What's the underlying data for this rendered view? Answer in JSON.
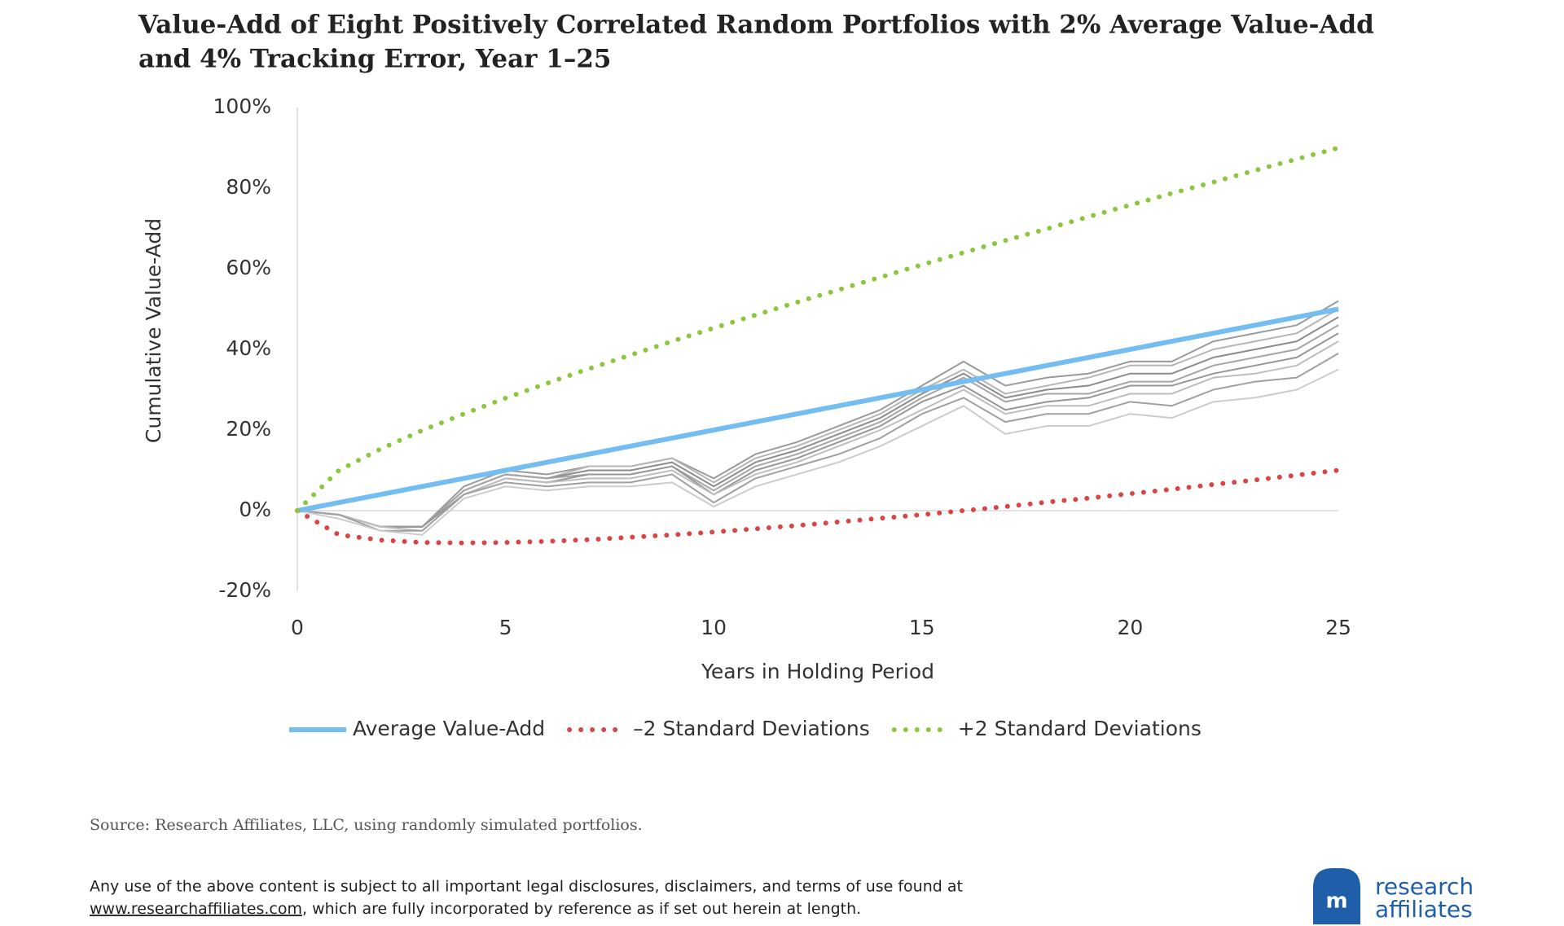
{
  "chart_data": {
    "type": "line",
    "title": [
      "Value-Add of Eight Positively Correlated Random Portfolios with 2% Average Value-Add",
      "and 4% Tracking Error, Year 1–25"
    ],
    "xlabel": "Years in Holding Period",
    "ylabel": "Cumulative Value-Add",
    "x": [
      0,
      1,
      2,
      3,
      4,
      5,
      6,
      7,
      8,
      9,
      10,
      11,
      12,
      13,
      14,
      15,
      16,
      17,
      18,
      19,
      20,
      21,
      22,
      23,
      24,
      25
    ],
    "xlim": [
      0,
      25
    ],
    "xticks": [
      0,
      5,
      10,
      15,
      20,
      25
    ],
    "ylim": [
      -20,
      100
    ],
    "yticks": [
      {
        "value": -20,
        "label": "-20%"
      },
      {
        "value": 0,
        "label": "0%"
      },
      {
        "value": 20,
        "label": "20%"
      },
      {
        "value": 40,
        "label": "40%"
      },
      {
        "value": 60,
        "label": "60%"
      },
      {
        "value": 80,
        "label": "80%"
      },
      {
        "value": 100,
        "label": "100%"
      }
    ],
    "legend": "bottom",
    "series": [
      {
        "color": "#9a9a9a",
        "values": [
          0,
          -1,
          -4,
          -4,
          6,
          10,
          9,
          11,
          11,
          13,
          8,
          14,
          17,
          21,
          25,
          31,
          37,
          31,
          33,
          34,
          37,
          37,
          42,
          44,
          46,
          52
        ]
      },
      {
        "color": "#b5b5b5",
        "values": [
          0,
          -1,
          -4,
          -4,
          5,
          9,
          8,
          11,
          11,
          13,
          7,
          13,
          16,
          20,
          24,
          30,
          35,
          29,
          31,
          33,
          36,
          36,
          40,
          42,
          44,
          50
        ]
      },
      {
        "color": "#8c8c8c",
        "values": [
          0,
          -1,
          -4,
          -4,
          5,
          9,
          8,
          10,
          10,
          12,
          6,
          12,
          15,
          19,
          23,
          29,
          34,
          28,
          30,
          31,
          34,
          34,
          38,
          40,
          42,
          48
        ]
      },
      {
        "color": "#a5a5a5",
        "values": [
          0,
          -1,
          -4,
          -4,
          5,
          9,
          8,
          9,
          9,
          11,
          5,
          11,
          14,
          18,
          22,
          28,
          33,
          27,
          29,
          29,
          32,
          32,
          36,
          38,
          40,
          46
        ]
      },
      {
        "color": "#969696",
        "values": [
          0,
          -1,
          -4,
          -4,
          4,
          8,
          7,
          9,
          9,
          11,
          4,
          10,
          13,
          17,
          21,
          27,
          31,
          25,
          27,
          28,
          31,
          31,
          34,
          36,
          38,
          44
        ]
      },
      {
        "color": "#bdbdbd",
        "values": [
          0,
          -1,
          -4,
          -5,
          4,
          8,
          7,
          8,
          8,
          10,
          4,
          9,
          12,
          16,
          20,
          25,
          30,
          24,
          26,
          26,
          29,
          29,
          33,
          34,
          36,
          42
        ]
      },
      {
        "color": "#a0a0a0",
        "values": [
          0,
          -1,
          -5,
          -5,
          4,
          7,
          6,
          7,
          7,
          9,
          2,
          8,
          11,
          14,
          18,
          24,
          28,
          22,
          24,
          24,
          27,
          26,
          30,
          32,
          33,
          39
        ]
      },
      {
        "color": "#cccccc",
        "values": [
          0,
          -2,
          -5,
          -6,
          3,
          6,
          5,
          6,
          6,
          7,
          1,
          6,
          9,
          12,
          16,
          21,
          26,
          19,
          21,
          21,
          24,
          23,
          27,
          28,
          30,
          35
        ]
      },
      {
        "name": "Average Value-Add",
        "color": "#74bdf0",
        "style": "solid",
        "values": [
          0,
          2,
          4,
          6,
          8,
          10,
          12,
          14,
          16,
          18,
          20,
          22,
          24,
          26,
          28,
          30,
          32,
          34,
          36,
          38,
          40,
          42,
          44,
          46,
          48,
          50
        ]
      },
      {
        "name": "–2 Standard Deviations",
        "color": "#d94545",
        "style": "dotted",
        "values": [
          0,
          -6,
          -7.3,
          -7.9,
          -8,
          -7.9,
          -7.6,
          -7.2,
          -6.6,
          -6,
          -5.3,
          -4.5,
          -3.7,
          -2.8,
          -1.9,
          -1,
          0,
          1,
          2.1,
          3.1,
          4.2,
          5.3,
          6.5,
          7.6,
          8.8,
          10
        ]
      },
      {
        "name": "+2 Standard Deviations",
        "color": "#8cc63f",
        "style": "dotted",
        "values": [
          0,
          10,
          15.3,
          19.9,
          24,
          27.9,
          31.6,
          35.2,
          38.6,
          42,
          45.3,
          48.5,
          51.7,
          54.8,
          57.9,
          61,
          64,
          67,
          69.9,
          72.9,
          75.8,
          78.7,
          81.5,
          84.4,
          87.2,
          90
        ]
      }
    ]
  },
  "footer": {
    "source": "Source: Research Affiliates, LLC, using randomly simulated portfolios.",
    "disclaimer": [
      "Any use of the above content is subject to all important legal disclosures, disclaimers, and terms of use found at",
      "www.researchaffiliates.com",
      ", which are fully incorporated by reference as if set out herein at length."
    ],
    "logo": [
      "research",
      "affiliates"
    ]
  }
}
